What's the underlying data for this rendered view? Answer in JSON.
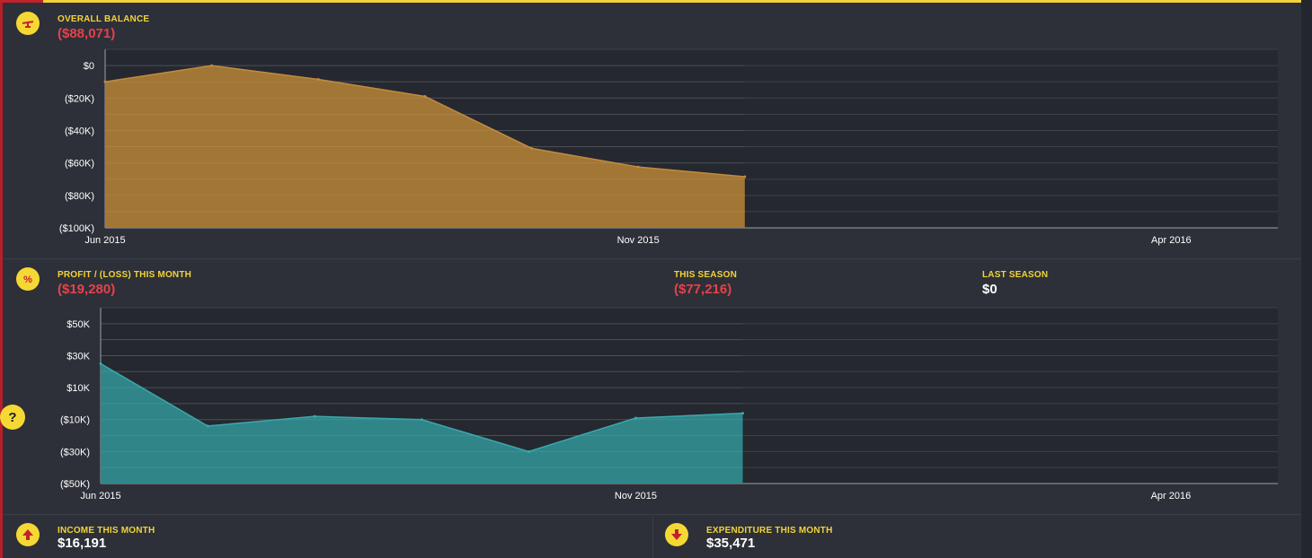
{
  "balance": {
    "label": "OVERALL BALANCE",
    "value": "($88,071)",
    "icon": "balance-scale-icon"
  },
  "profit": {
    "label": "PROFIT / (LOSS) THIS MONTH",
    "value": "($19,280)",
    "icon": "percent-icon",
    "this_season_label": "THIS SEASON",
    "this_season_value": "($77,216)",
    "last_season_label": "LAST SEASON",
    "last_season_value": "$0"
  },
  "income": {
    "label": "INCOME THIS MONTH",
    "value": "$16,191",
    "icon": "arrow-up-icon"
  },
  "expenditure": {
    "label": "EXPENDITURE THIS MONTH",
    "value": "$35,471",
    "icon": "arrow-down-icon"
  },
  "help": {
    "label": "?"
  },
  "colors": {
    "accent": "#f2d33a",
    "negative": "#e8414b",
    "balance_fill": "#a97a36",
    "balance_line": "#c28b3e",
    "profit_fill": "#2f8a8d",
    "profit_line": "#39a9ad"
  },
  "chart_data": [
    {
      "type": "area",
      "title": "OVERALL BALANCE",
      "x": [
        "Jun 2015",
        "Jul 2015",
        "Aug 2015",
        "Sep 2015",
        "Oct 2015",
        "Nov 2015",
        "Dec 2015"
      ],
      "values": [
        -10000,
        0,
        -8500,
        -19000,
        -51000,
        -62500,
        -68500
      ],
      "x_ticks": [
        "Jun 2015",
        "Nov 2015",
        "Apr 2016"
      ],
      "x_tick_index": [
        0,
        5,
        10
      ],
      "x_count": 12,
      "y_ticks": [
        0,
        -20000,
        -40000,
        -60000,
        -80000,
        -100000
      ],
      "y_tick_labels": [
        "$0",
        "($20K)",
        "($40K)",
        "($60K)",
        "($80K)",
        "($100K)"
      ],
      "ylim": [
        -100000,
        10000
      ],
      "grid": true
    },
    {
      "type": "area",
      "title": "PROFIT / (LOSS) THIS MONTH",
      "x": [
        "Jun 2015",
        "Jul 2015",
        "Aug 2015",
        "Sep 2015",
        "Oct 2015",
        "Nov 2015",
        "Dec 2015"
      ],
      "values": [
        25000,
        -14000,
        -8000,
        -10000,
        -30000,
        -9000,
        -6000
      ],
      "x_ticks": [
        "Jun 2015",
        "Nov 2015",
        "Apr 2016"
      ],
      "x_tick_index": [
        0,
        5,
        10
      ],
      "x_count": 12,
      "y_ticks": [
        50000,
        30000,
        10000,
        -10000,
        -30000,
        -50000
      ],
      "y_tick_labels": [
        "$50K",
        "$30K",
        "$10K",
        "($10K)",
        "($30K)",
        "($50K)"
      ],
      "ylim": [
        -50000,
        60000
      ],
      "grid": true
    }
  ]
}
